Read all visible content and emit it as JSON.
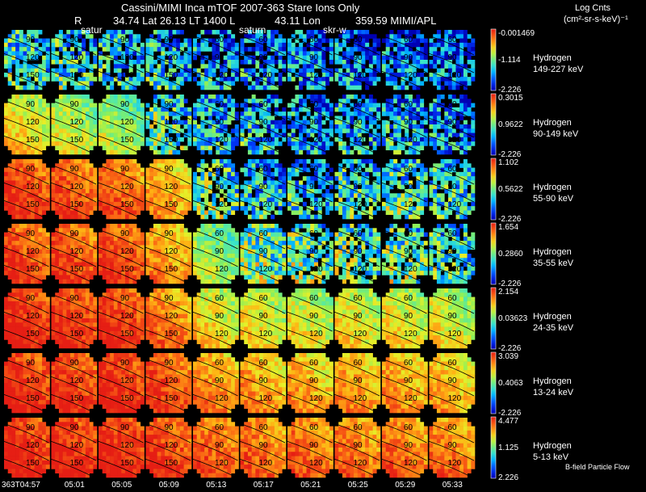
{
  "header": {
    "line1": "Cassini/MIMI Inca mTOF  2007-363   Stare    Ions Only",
    "line2_r": "R",
    "line2": "34.74 Lat 26.13 LT 1400 L",
    "line2_lon": "43.11 Lon",
    "line2_end": "359.59  MIMI/APL",
    "overlay_labels": [
      "satur",
      "saturn",
      "skr-w"
    ]
  },
  "units": {
    "title": "Log Cnts",
    "line2": "(cm²-sr-s-keV)⁻¹"
  },
  "footer": {
    "note": "B-field Particle Flow"
  },
  "colors": {
    "background": "#000000",
    "text": "#ffffff",
    "contour": "#000000"
  },
  "chart_data": {
    "type": "heatmap",
    "colormap": "rainbow (blue low → red high)",
    "times": [
      "363T04:57",
      "05:01",
      "05:05",
      "05:09",
      "05:13",
      "05:17",
      "05:21",
      "05:25",
      "05:29",
      "05:33"
    ],
    "contour_labels": [
      "60",
      "90",
      "120",
      "150"
    ],
    "rows": [
      {
        "species": "Hydrogen",
        "energy": "149-227 keV",
        "cb_max": "-0.001469",
        "cb_mid": "-1.114",
        "cb_min": "-2.226",
        "intensity": [
          0.35,
          0.34,
          0.3,
          0.28,
          0.22,
          0.2,
          0.18,
          0.16,
          0.15,
          0.12
        ]
      },
      {
        "species": "Hydrogen",
        "energy": "90-149 keV",
        "cb_max": "0.3015",
        "cb_mid": "0.9622",
        "cb_min": "-2.226",
        "intensity": [
          0.62,
          0.55,
          0.5,
          0.38,
          0.3,
          0.25,
          0.22,
          0.25,
          0.25,
          0.2
        ]
      },
      {
        "species": "Hydrogen",
        "energy": "55-90 keV",
        "cb_max": "1.102",
        "cb_mid": "0.5622",
        "cb_min": "-2.226",
        "intensity": [
          0.88,
          0.85,
          0.82,
          0.7,
          0.42,
          0.3,
          0.3,
          0.35,
          0.38,
          0.33
        ]
      },
      {
        "species": "Hydrogen",
        "energy": "35-55 keV",
        "cb_max": "1.654",
        "cb_mid": "0.2860",
        "cb_min": "-2.226",
        "intensity": [
          0.85,
          0.86,
          0.86,
          0.72,
          0.5,
          0.45,
          0.42,
          0.42,
          0.42,
          0.38
        ]
      },
      {
        "species": "Hydrogen",
        "energy": "24-35 keV",
        "cb_max": "2.154",
        "cb_mid": "0.03623",
        "cb_min": "-2.226",
        "intensity": [
          0.92,
          0.9,
          0.9,
          0.78,
          0.62,
          0.6,
          0.58,
          0.6,
          0.6,
          0.58
        ]
      },
      {
        "species": "Hydrogen",
        "energy": "13-24 keV",
        "cb_max": "3.039",
        "cb_mid": "0.4063",
        "cb_min": "-2.226",
        "intensity": [
          0.92,
          0.9,
          0.92,
          0.85,
          0.75,
          0.72,
          0.7,
          0.72,
          0.72,
          0.68
        ]
      },
      {
        "species": "Hydrogen",
        "energy": "5-13 keV",
        "cb_max": "4.477",
        "cb_mid": "1.125",
        "cb_min": "2.226",
        "intensity": [
          0.93,
          0.92,
          0.93,
          0.88,
          0.82,
          0.8,
          0.8,
          0.78,
          0.8,
          0.78
        ]
      }
    ]
  }
}
